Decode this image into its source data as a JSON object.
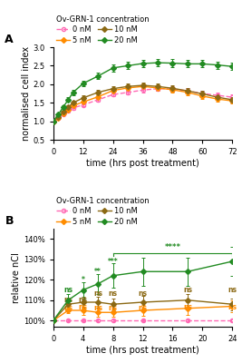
{
  "chart_data": [
    {
      "type": "line",
      "panel_label": "A",
      "xlabel": "time (hrs post treatment)",
      "ylabel": "normalised cell index",
      "xlim": [
        0,
        72
      ],
      "ylim": [
        0.5,
        3.0
      ],
      "xticks": [
        0,
        12,
        24,
        36,
        48,
        60,
        72
      ],
      "yticks": [
        0.5,
        {
          "value": 1.0,
          "label": "1.0"
        },
        1.5,
        {
          "value": 2.0,
          "label": "2.0"
        },
        2.5,
        {
          "value": 3.0,
          "label": "3.0"
        }
      ],
      "legend_title": "Ov-GRN-1 concentration",
      "x": [
        0,
        2,
        4,
        6,
        8,
        12,
        18,
        24,
        30,
        36,
        42,
        48,
        54,
        60,
        66,
        72
      ],
      "series": [
        {
          "name": "0 nM",
          "color": "#ff69b4",
          "marker": "open_circle",
          "line_style": "dashed",
          "values": [
            1.0,
            1.08,
            1.18,
            1.28,
            1.36,
            1.44,
            1.58,
            1.72,
            1.78,
            1.84,
            1.88,
            1.87,
            1.82,
            1.75,
            1.7,
            1.65
          ],
          "yerr": [
            0.02,
            0.03,
            0.03,
            0.04,
            0.04,
            0.04,
            0.05,
            0.05,
            0.05,
            0.06,
            0.06,
            0.07,
            0.07,
            0.07,
            0.07,
            0.07
          ]
        },
        {
          "name": "5 nM",
          "color": "#ff8c00",
          "marker": "diamond",
          "line_style": "solid",
          "values": [
            1.0,
            1.1,
            1.22,
            1.32,
            1.42,
            1.52,
            1.66,
            1.83,
            1.9,
            1.94,
            1.9,
            1.85,
            1.78,
            1.68,
            1.6,
            1.55
          ],
          "yerr": [
            0.02,
            0.03,
            0.04,
            0.04,
            0.05,
            0.05,
            0.06,
            0.07,
            0.07,
            0.07,
            0.07,
            0.08,
            0.08,
            0.08,
            0.08,
            0.08
          ]
        },
        {
          "name": "10 nM",
          "color": "#8b6914",
          "marker": "diamond",
          "line_style": "solid",
          "values": [
            1.0,
            1.12,
            1.25,
            1.38,
            1.5,
            1.63,
            1.78,
            1.88,
            1.94,
            1.97,
            1.94,
            1.89,
            1.82,
            1.74,
            1.65,
            1.58
          ],
          "yerr": [
            0.02,
            0.03,
            0.04,
            0.05,
            0.05,
            0.06,
            0.07,
            0.07,
            0.08,
            0.08,
            0.08,
            0.08,
            0.08,
            0.08,
            0.08,
            0.08
          ]
        },
        {
          "name": "20 nM",
          "color": "#228b22",
          "marker": "diamond",
          "line_style": "solid",
          "values": [
            1.0,
            1.18,
            1.38,
            1.58,
            1.78,
            2.02,
            2.22,
            2.44,
            2.5,
            2.56,
            2.58,
            2.57,
            2.55,
            2.55,
            2.52,
            2.48
          ],
          "yerr": [
            0.02,
            0.04,
            0.05,
            0.06,
            0.07,
            0.08,
            0.09,
            0.1,
            0.1,
            0.1,
            0.1,
            0.1,
            0.1,
            0.1,
            0.1,
            0.1
          ]
        }
      ]
    },
    {
      "type": "line",
      "panel_label": "B",
      "xlabel": "time (hrs post treatment)",
      "ylabel": "relative nCI",
      "xlim": [
        0,
        24
      ],
      "ylim": [
        97,
        145
      ],
      "xticks": [
        0,
        4,
        8,
        12,
        16,
        20,
        24
      ],
      "yticks": [
        {
          "value": 100,
          "label": "100%"
        },
        {
          "value": 110,
          "label": "110%"
        },
        {
          "value": 120,
          "label": "120%"
        },
        {
          "value": 130,
          "label": "130%"
        },
        {
          "value": 140,
          "label": "140%"
        }
      ],
      "legend_title": "Ov-GRN-1 concentration",
      "x": [
        0,
        2,
        4,
        6,
        8,
        12,
        18,
        24
      ],
      "series": [
        {
          "name": "0 nM",
          "color": "#ff69b4",
          "marker": "open_circle",
          "line_style": "dashed",
          "values": [
            100,
            100,
            100,
            100,
            100,
            100,
            100,
            100
          ],
          "yerr": [
            0,
            0.5,
            0.5,
            0.5,
            0.5,
            0.5,
            0.5,
            0.5
          ]
        },
        {
          "name": "5 nM",
          "color": "#ff8c00",
          "marker": "diamond",
          "line_style": "solid",
          "values": [
            100,
            105,
            105,
            104,
            104,
            105,
            106,
            107
          ],
          "yerr": [
            0,
            1.5,
            2,
            2,
            2,
            2.5,
            3,
            3
          ]
        },
        {
          "name": "10 nM",
          "color": "#8b6914",
          "marker": "diamond",
          "line_style": "solid",
          "values": [
            100,
            108,
            109,
            109,
            108,
            109,
            110,
            108
          ],
          "yerr": [
            0,
            2,
            2.5,
            2.5,
            3,
            3,
            3,
            3
          ]
        },
        {
          "name": "20 nM",
          "color": "#228b22",
          "marker": "diamond",
          "line_style": "solid",
          "values": [
            100,
            110,
            115,
            118,
            122,
            124,
            124,
            129
          ],
          "yerr": [
            0,
            3,
            4,
            5,
            6,
            7,
            7,
            7
          ]
        }
      ],
      "annotations": [
        {
          "x": 2,
          "y": 113,
          "text": "ns",
          "color": "#228b22"
        },
        {
          "x": 2,
          "y": 108,
          "text": "ns",
          "color": "#8b6914"
        },
        {
          "x": 2,
          "y": 104,
          "text": "ns",
          "color": "#ff8c00"
        },
        {
          "x": 4,
          "y": 118,
          "text": "*",
          "color": "#228b22"
        },
        {
          "x": 4,
          "y": 108,
          "text": "ns",
          "color": "#8b6914"
        },
        {
          "x": 4,
          "y": 104.5,
          "text": "ns",
          "color": "#ff8c00"
        },
        {
          "x": 6,
          "y": 122,
          "text": "**",
          "color": "#228b22"
        },
        {
          "x": 6,
          "y": 111,
          "text": "ns",
          "color": "#8b6914"
        },
        {
          "x": 6,
          "y": 104,
          "text": "ns",
          "color": "#ff8c00"
        },
        {
          "x": 8,
          "y": 127,
          "text": "***",
          "color": "#228b22"
        },
        {
          "x": 8,
          "y": 111,
          "text": "ns",
          "color": "#8b6914"
        },
        {
          "x": 8,
          "y": 104,
          "text": "ns",
          "color": "#ff8c00"
        },
        {
          "x": 12,
          "y": 111,
          "text": "ns",
          "color": "#8b6914"
        },
        {
          "x": 12,
          "y": 104,
          "text": "ns",
          "color": "#ff8c00"
        },
        {
          "x": 18,
          "y": 113,
          "text": "ns",
          "color": "#8b6914"
        },
        {
          "x": 18,
          "y": 104.5,
          "text": "ns",
          "color": "#ff8c00"
        },
        {
          "x": 24,
          "y": 113,
          "text": "ns",
          "color": "#8b6914"
        },
        {
          "x": 24,
          "y": 104.5,
          "text": "ns",
          "color": "#ff8c00"
        }
      ],
      "bracket": {
        "x1": 8,
        "x2": 24,
        "line_y": 133,
        "leg_end_y": 131.5,
        "text_y": 134,
        "text": "****",
        "color": "#228b22"
      }
    }
  ]
}
